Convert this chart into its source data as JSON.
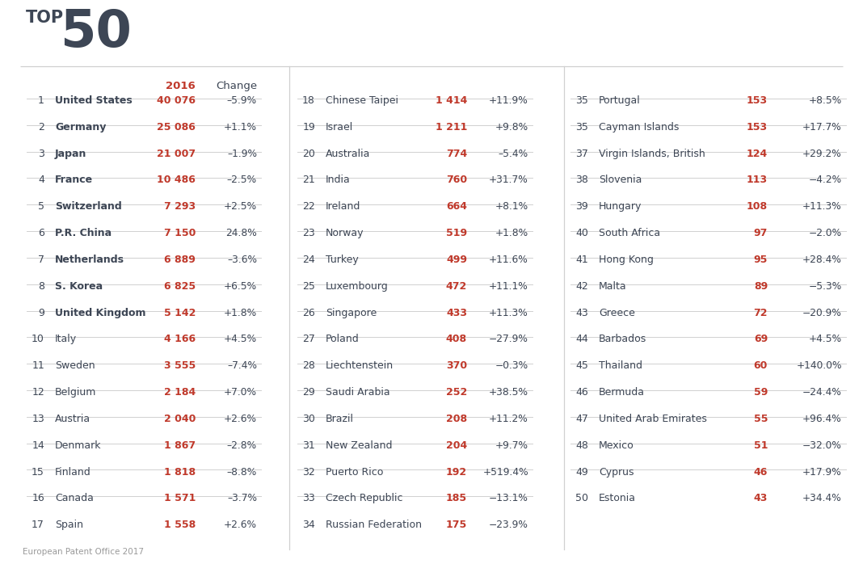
{
  "title_top": "TOP",
  "title_num": "50",
  "footer": "European Patent Office 2017",
  "header_year": "2016",
  "header_change": "Change",
  "col1": [
    {
      "rank": "1",
      "country": "United States",
      "value": "40 076",
      "change": "–5.9%"
    },
    {
      "rank": "2",
      "country": "Germany",
      "value": "25 086",
      "change": "+1.1%"
    },
    {
      "rank": "3",
      "country": "Japan",
      "value": "21 007",
      "change": "–1.9%"
    },
    {
      "rank": "4",
      "country": "France",
      "value": "10 486",
      "change": "–2.5%"
    },
    {
      "rank": "5",
      "country": "Switzerland",
      "value": "7 293",
      "change": "+2.5%"
    },
    {
      "rank": "6",
      "country": "P.R. China",
      "value": "7 150",
      "change": "24.8%"
    },
    {
      "rank": "7",
      "country": "Netherlands",
      "value": "6 889",
      "change": "–3.6%"
    },
    {
      "rank": "8",
      "country": "S. Korea",
      "value": "6 825",
      "change": "+6.5%"
    },
    {
      "rank": "9",
      "country": "United Kingdom",
      "value": "5 142",
      "change": "+1.8%"
    },
    {
      "rank": "10",
      "country": "Italy",
      "value": "4 166",
      "change": "+4.5%"
    },
    {
      "rank": "11",
      "country": "Sweden",
      "value": "3 555",
      "change": "–7.4%"
    },
    {
      "rank": "12",
      "country": "Belgium",
      "value": "2 184",
      "change": "+7.0%"
    },
    {
      "rank": "13",
      "country": "Austria",
      "value": "2 040",
      "change": "+2.6%"
    },
    {
      "rank": "14",
      "country": "Denmark",
      "value": "1 867",
      "change": "–2.8%"
    },
    {
      "rank": "15",
      "country": "Finland",
      "value": "1 818",
      "change": "–8.8%"
    },
    {
      "rank": "16",
      "country": "Canada",
      "value": "1 571",
      "change": "–3.7%"
    },
    {
      "rank": "17",
      "country": "Spain",
      "value": "1 558",
      "change": "+2.6%"
    }
  ],
  "col2": [
    {
      "rank": "18",
      "country": "Chinese Taipei",
      "value": "1 414",
      "change": "+11.9%"
    },
    {
      "rank": "19",
      "country": "Israel",
      "value": "1 211",
      "change": "+9.8%"
    },
    {
      "rank": "20",
      "country": "Australia",
      "value": "774",
      "change": "–5.4%"
    },
    {
      "rank": "21",
      "country": "India",
      "value": "760",
      "change": "+31.7%"
    },
    {
      "rank": "22",
      "country": "Ireland",
      "value": "664",
      "change": "+8.1%"
    },
    {
      "rank": "23",
      "country": "Norway",
      "value": "519",
      "change": "+1.8%"
    },
    {
      "rank": "24",
      "country": "Turkey",
      "value": "499",
      "change": "+11.6%"
    },
    {
      "rank": "25",
      "country": "Luxembourg",
      "value": "472",
      "change": "+11.1%"
    },
    {
      "rank": "26",
      "country": "Singapore",
      "value": "433",
      "change": "+11.3%"
    },
    {
      "rank": "27",
      "country": "Poland",
      "value": "408",
      "change": "−27.9%"
    },
    {
      "rank": "28",
      "country": "Liechtenstein",
      "value": "370",
      "change": "−0.3%"
    },
    {
      "rank": "29",
      "country": "Saudi Arabia",
      "value": "252",
      "change": "+38.5%"
    },
    {
      "rank": "30",
      "country": "Brazil",
      "value": "208",
      "change": "+11.2%"
    },
    {
      "rank": "31",
      "country": "New Zealand",
      "value": "204",
      "change": "+9.7%"
    },
    {
      "rank": "32",
      "country": "Puerto Rico",
      "value": "192",
      "change": "+519.4%"
    },
    {
      "rank": "33",
      "country": "Czech Republic",
      "value": "185",
      "change": "−13.1%"
    },
    {
      "rank": "34",
      "country": "Russian Federation",
      "value": "175",
      "change": "−23.9%"
    }
  ],
  "col3": [
    {
      "rank": "35",
      "country": "Portugal",
      "value": "153",
      "change": "+8.5%"
    },
    {
      "rank": "35",
      "country": "Cayman Islands",
      "value": "153",
      "change": "+17.7%"
    },
    {
      "rank": "37",
      "country": "Virgin Islands, British",
      "value": "124",
      "change": "+29.2%"
    },
    {
      "rank": "38",
      "country": "Slovenia",
      "value": "113",
      "change": "−4.2%"
    },
    {
      "rank": "39",
      "country": "Hungary",
      "value": "108",
      "change": "+11.3%"
    },
    {
      "rank": "40",
      "country": "South Africa",
      "value": "97",
      "change": "−2.0%"
    },
    {
      "rank": "41",
      "country": "Hong Kong",
      "value": "95",
      "change": "+28.4%"
    },
    {
      "rank": "42",
      "country": "Malta",
      "value": "89",
      "change": "−5.3%"
    },
    {
      "rank": "43",
      "country": "Greece",
      "value": "72",
      "change": "−20.9%"
    },
    {
      "rank": "44",
      "country": "Barbados",
      "value": "69",
      "change": "+4.5%"
    },
    {
      "rank": "45",
      "country": "Thailand",
      "value": "60",
      "change": "+140.0%"
    },
    {
      "rank": "46",
      "country": "Bermuda",
      "value": "59",
      "change": "−24.4%"
    },
    {
      "rank": "47",
      "country": "United Arab Emirates",
      "value": "55",
      "change": "+96.4%"
    },
    {
      "rank": "48",
      "country": "Mexico",
      "value": "51",
      "change": "−32.0%"
    },
    {
      "rank": "49",
      "country": "Cyprus",
      "value": "46",
      "change": "+17.9%"
    },
    {
      "rank": "50",
      "country": "Estonia",
      "value": "43",
      "change": "+34.4%"
    }
  ],
  "bg_color": "#ffffff",
  "text_dark": "#3d4655",
  "text_red": "#c0392b",
  "text_gray": "#9a9a9a",
  "line_color": "#d0d0d0"
}
